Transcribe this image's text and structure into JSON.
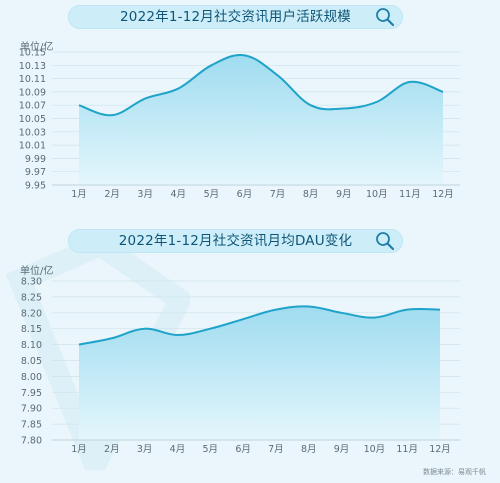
{
  "chart_data": [
    {
      "type": "area",
      "title": "2022年1-12月社交资讯用户活跃规模",
      "unit": "单位/亿",
      "categories": [
        "1月",
        "2月",
        "3月",
        "4月",
        "5月",
        "6月",
        "7月",
        "8月",
        "9月",
        "10月",
        "11月",
        "12月"
      ],
      "series": [
        {
          "values": [
            10.07,
            10.055,
            10.08,
            10.095,
            10.13,
            10.145,
            10.115,
            10.07,
            10.065,
            10.075,
            10.105,
            10.09
          ]
        }
      ],
      "yticks": [
        "10.15",
        "10.13",
        "10.11",
        "10.09",
        "10.07",
        "10.05",
        "10.03",
        "10.01",
        "9.99",
        "9.97",
        "9.95"
      ],
      "ylim": [
        9.95,
        10.15
      ],
      "grid": true,
      "legend": "none"
    },
    {
      "type": "area",
      "title": "2022年1-12月社交资讯月均DAU变化",
      "unit": "单位/亿",
      "categories": [
        "1月",
        "2月",
        "3月",
        "4月",
        "5月",
        "6月",
        "7月",
        "8月",
        "9月",
        "10月",
        "11月",
        "12月"
      ],
      "series": [
        {
          "values": [
            8.1,
            8.12,
            8.15,
            8.13,
            8.15,
            8.18,
            8.21,
            8.22,
            8.2,
            8.185,
            8.21,
            8.21
          ]
        }
      ],
      "yticks": [
        "8.30",
        "8.25",
        "8.20",
        "8.15",
        "8.10",
        "8.05",
        "8.00",
        "7.95",
        "7.90",
        "7.85",
        "7.80"
      ],
      "ylim": [
        7.8,
        8.3
      ],
      "grid": true,
      "legend": "none"
    }
  ],
  "source": "数据来源：易观千帆",
  "colors": {
    "line": "#1fa3c9",
    "fill_top": "#9fdcf0",
    "fill_bottom": "#e4f6fc",
    "title_text": "#0f5577"
  },
  "icons": [
    "search-icon"
  ]
}
